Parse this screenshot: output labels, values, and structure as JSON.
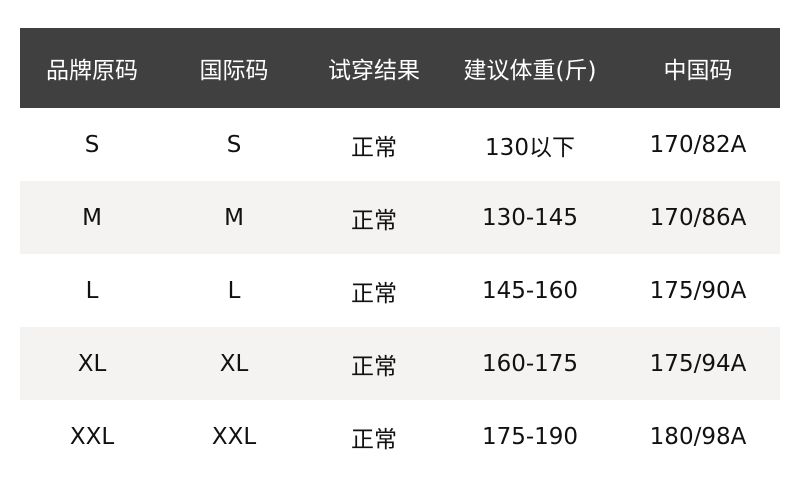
{
  "colors": {
    "header_bg": "#404040",
    "header_text": "#ffffff",
    "alt_row_bg": "#f4f3f1"
  },
  "headers": [
    "品牌原码",
    "国际码",
    "试穿结果",
    "建议体重(斤)",
    "中国码"
  ],
  "rows": [
    [
      "S",
      "S",
      "正常",
      "130以下",
      "170/82A"
    ],
    [
      "M",
      "M",
      "正常",
      "130-145",
      "170/86A"
    ],
    [
      "L",
      "L",
      "正常",
      "145-160",
      "175/90A"
    ],
    [
      "XL",
      "XL",
      "正常",
      "160-175",
      "175/94A"
    ],
    [
      "XXL",
      "XXL",
      "正常",
      "175-190",
      "180/98A"
    ]
  ]
}
